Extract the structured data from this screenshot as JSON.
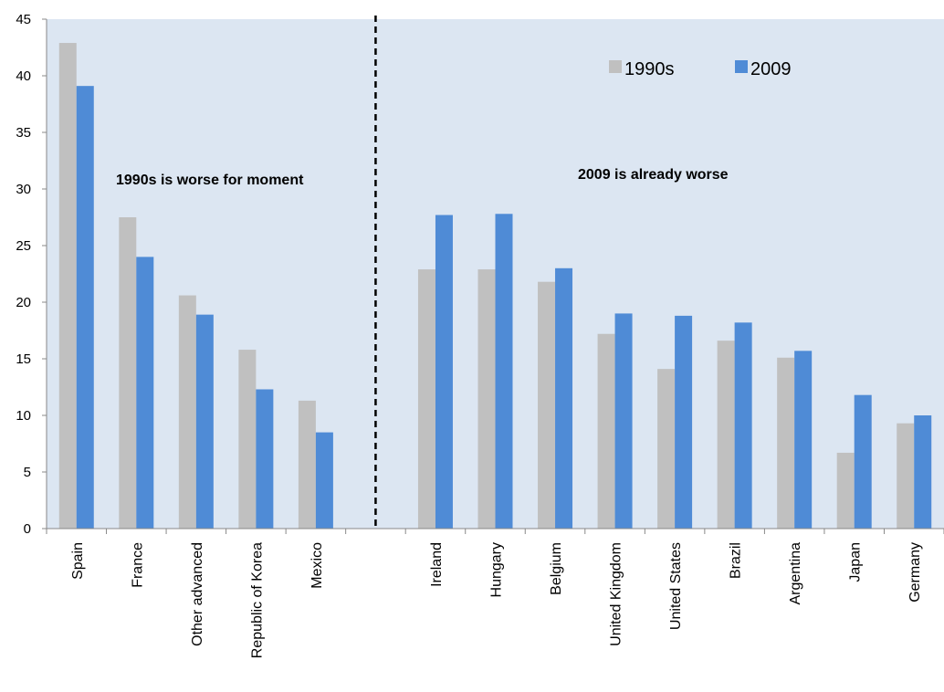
{
  "chart_data": {
    "type": "bar",
    "title": "",
    "xlabel": "",
    "ylabel": "",
    "ylim": [
      0,
      45
    ],
    "yticks": [
      0,
      5,
      10,
      15,
      20,
      25,
      30,
      35,
      40,
      45
    ],
    "grid": false,
    "legend_position": "top-right",
    "categories": [
      "Spain",
      "France",
      "Other advanced",
      "Republic of Korea",
      "Mexico",
      "",
      "Ireland",
      "Hungary",
      "Belgium",
      "United Kingdom",
      "United States",
      "Brazil",
      "Argentina",
      "Japan",
      "Germany"
    ],
    "series": [
      {
        "name": "1990s",
        "color": "#c0c0c0",
        "values": [
          42.9,
          27.5,
          20.6,
          15.8,
          11.3,
          null,
          22.9,
          22.9,
          21.8,
          17.2,
          14.1,
          16.6,
          15.1,
          6.7,
          9.3
        ]
      },
      {
        "name": "2009",
        "color": "#4f8bd6",
        "values": [
          39.1,
          24.0,
          18.9,
          12.3,
          8.5,
          null,
          27.7,
          27.8,
          23.0,
          19.0,
          18.8,
          18.2,
          15.7,
          11.8,
          10.0
        ]
      }
    ],
    "annotations": [
      {
        "text": "1990s is worse for moment"
      },
      {
        "text": "2009 is already worse"
      }
    ],
    "plot_background": "#dce6f2",
    "divider_color": "#000000"
  }
}
